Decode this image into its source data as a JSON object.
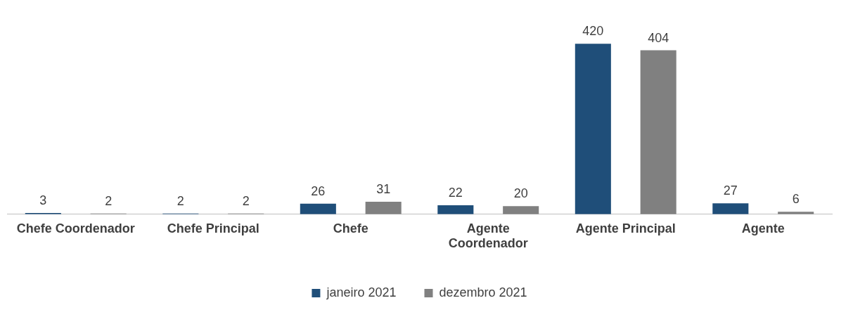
{
  "chart_data": {
    "type": "bar",
    "categories": [
      "Chefe Coordenador",
      "Chefe Principal",
      "Chefe",
      "Agente Coordenador",
      "Agente Principal",
      "Agente"
    ],
    "series": [
      {
        "name": "janeiro 2021",
        "color": "#1f4e79",
        "values": [
          3,
          2,
          26,
          22,
          420,
          27
        ]
      },
      {
        "name": "dezembro 2021",
        "color": "#808080",
        "values": [
          2,
          2,
          31,
          20,
          404,
          6
        ]
      }
    ],
    "data_labels": true,
    "legend": "bottom",
    "grid": false
  }
}
